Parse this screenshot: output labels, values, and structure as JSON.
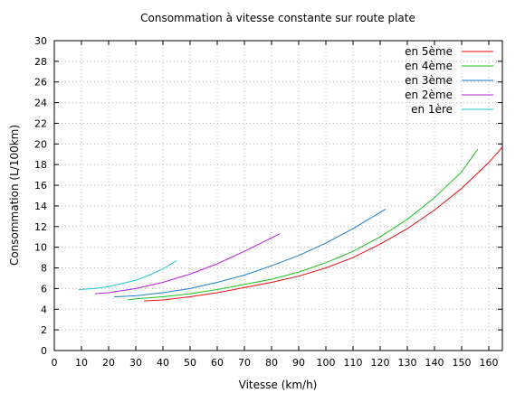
{
  "chart_data": {
    "type": "line",
    "title": "Consommation à vitesse constante sur route plate",
    "xlabel": "Vitesse (km/h)",
    "ylabel": "Consommation (L/100km)",
    "xlim": [
      0,
      165
    ],
    "ylim": [
      0,
      30
    ],
    "xticks": [
      "0",
      "10",
      "20",
      "30",
      "40",
      "50",
      "60",
      "70",
      "80",
      "90",
      "100",
      "110",
      "120",
      "130",
      "140",
      "150",
      "160"
    ],
    "yticks": [
      "0",
      "2",
      "4",
      "6",
      "8",
      "10",
      "12",
      "14",
      "16",
      "18",
      "20",
      "22",
      "24",
      "26",
      "28",
      "30"
    ],
    "grid": true,
    "legend_position": "top-right",
    "series": [
      {
        "name": "en 5ème",
        "color": "#e01010",
        "x": [
          33,
          40,
          50,
          60,
          70,
          80,
          90,
          100,
          110,
          120,
          130,
          140,
          150,
          160,
          165
        ],
        "y": [
          4.8,
          4.9,
          5.2,
          5.6,
          6.1,
          6.6,
          7.2,
          8.0,
          9.0,
          10.3,
          11.8,
          13.6,
          15.7,
          18.2,
          19.7
        ]
      },
      {
        "name": "en 4ème",
        "color": "#20c020",
        "x": [
          27,
          30,
          40,
          50,
          60,
          70,
          80,
          90,
          100,
          110,
          120,
          130,
          140,
          150,
          156
        ],
        "y": [
          4.9,
          5.0,
          5.2,
          5.5,
          5.9,
          6.4,
          6.9,
          7.6,
          8.5,
          9.6,
          11.0,
          12.7,
          14.8,
          17.3,
          19.5
        ]
      },
      {
        "name": "en 3ème",
        "color": "#1a7ec8",
        "x": [
          22,
          30,
          40,
          50,
          60,
          70,
          80,
          90,
          100,
          110,
          122
        ],
        "y": [
          5.2,
          5.3,
          5.6,
          6.0,
          6.6,
          7.3,
          8.2,
          9.2,
          10.4,
          11.8,
          13.7
        ]
      },
      {
        "name": "en 2ème",
        "color": "#b020d8",
        "x": [
          15,
          20,
          30,
          40,
          50,
          60,
          70,
          83
        ],
        "y": [
          5.5,
          5.6,
          6.0,
          6.6,
          7.4,
          8.4,
          9.6,
          11.3
        ]
      },
      {
        "name": "en 1ère",
        "color": "#20c8d8",
        "x": [
          9,
          15,
          20,
          25,
          30,
          35,
          40,
          45
        ],
        "y": [
          5.9,
          6.0,
          6.2,
          6.5,
          6.8,
          7.3,
          7.9,
          8.7
        ]
      }
    ]
  }
}
